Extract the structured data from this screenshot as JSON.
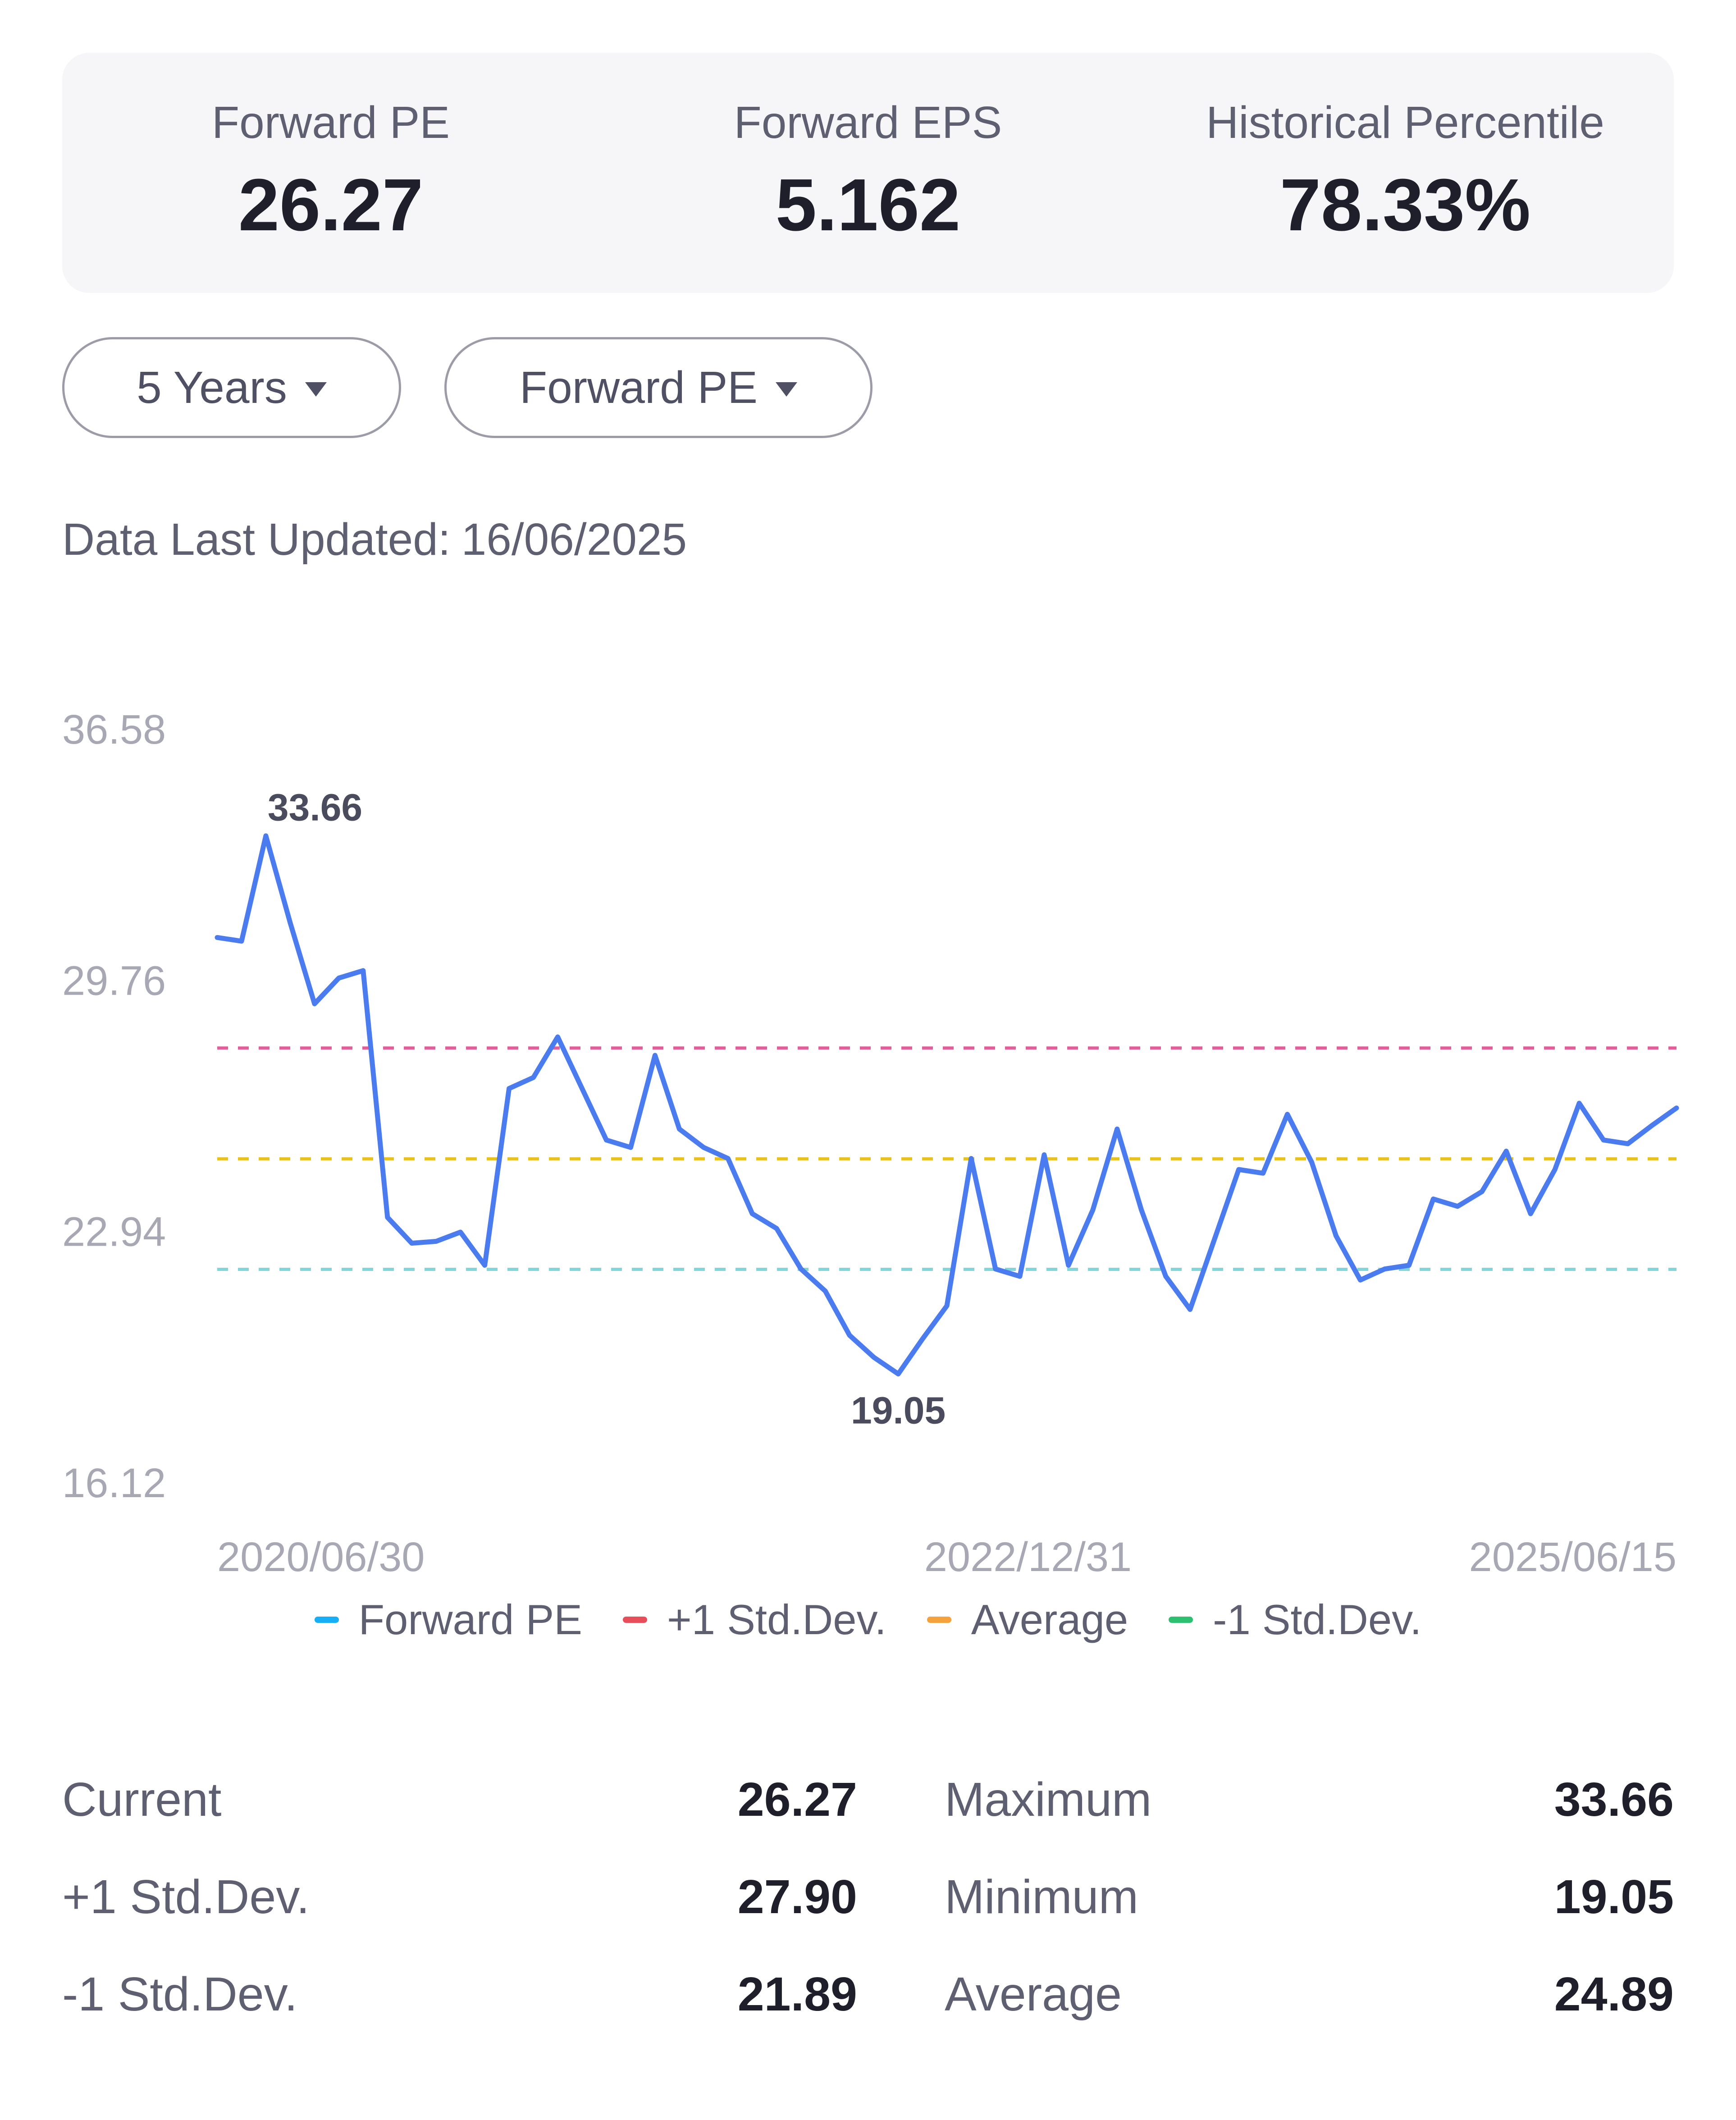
{
  "summary": {
    "items": [
      {
        "label": "Forward PE",
        "value": "26.27"
      },
      {
        "label": "Forward EPS",
        "value": "5.162"
      },
      {
        "label": "Historical Percentile",
        "value": "78.33%"
      }
    ]
  },
  "filters": {
    "period": "5 Years",
    "metric": "Forward PE"
  },
  "updated": {
    "label": "Data Last Updated:",
    "date": "16/06/2025"
  },
  "chart_data": {
    "type": "line",
    "title": "",
    "xlabel": "",
    "ylabel": "",
    "ylim": [
      16.12,
      36.58
    ],
    "y_ticks": [
      "36.58",
      "29.76",
      "22.94",
      "16.12"
    ],
    "x_ticks": [
      "2020/06/30",
      "2022/12/31",
      "2025/06/15"
    ],
    "grid": false,
    "legend_position": "bottom",
    "series": [
      {
        "name": "Forward PE",
        "color": "#4a7cf0",
        "values": [
          30.9,
          30.8,
          33.66,
          31.3,
          29.1,
          29.8,
          30.0,
          23.3,
          22.6,
          22.65,
          22.9,
          22.0,
          26.8,
          27.1,
          28.2,
          26.8,
          25.4,
          25.2,
          27.7,
          25.7,
          25.2,
          24.9,
          23.4,
          23.0,
          21.9,
          21.3,
          20.1,
          19.5,
          19.05,
          20.0,
          20.9,
          24.9,
          21.9,
          21.7,
          25.0,
          22.0,
          23.5,
          25.7,
          23.5,
          21.7,
          20.8,
          22.7,
          24.6,
          24.5,
          26.1,
          24.8,
          22.8,
          21.6,
          21.9,
          22.0,
          23.8,
          23.6,
          24.0,
          25.1,
          23.4,
          24.6,
          26.4,
          25.4,
          25.3,
          25.8,
          26.27
        ]
      },
      {
        "name": "+1 Std.Dev.",
        "color": "#e84e5a",
        "line_color": "#e0609a",
        "value": 27.9
      },
      {
        "name": "Average",
        "color": "#f5a23c",
        "line_color": "#e8c21a",
        "value": 24.89
      },
      {
        "name": "-1 Std.Dev.",
        "color": "#2dc071",
        "line_color": "#7fd6dc",
        "value": 21.89
      }
    ],
    "annotations": [
      {
        "text": "33.66",
        "point_index": 2
      },
      {
        "text": "19.05",
        "point_index": 28
      }
    ]
  },
  "legend": [
    {
      "label": "Forward PE",
      "color": "#16aff5"
    },
    {
      "label": "+1 Std.Dev.",
      "color": "#e84e5a"
    },
    {
      "label": "Average",
      "color": "#f5a23c"
    },
    {
      "label": "-1 Std.Dev.",
      "color": "#2dc071"
    }
  ],
  "stats": {
    "rows": [
      {
        "left_label": "Current",
        "left_value": "26.27",
        "right_label": "Maximum",
        "right_value": "33.66"
      },
      {
        "left_label": "+1 Std.Dev.",
        "left_value": "27.90",
        "right_label": "Minimum",
        "right_value": "19.05"
      },
      {
        "left_label": "-1 Std.Dev.",
        "left_value": "21.89",
        "right_label": "Average",
        "right_value": "24.89"
      }
    ]
  }
}
